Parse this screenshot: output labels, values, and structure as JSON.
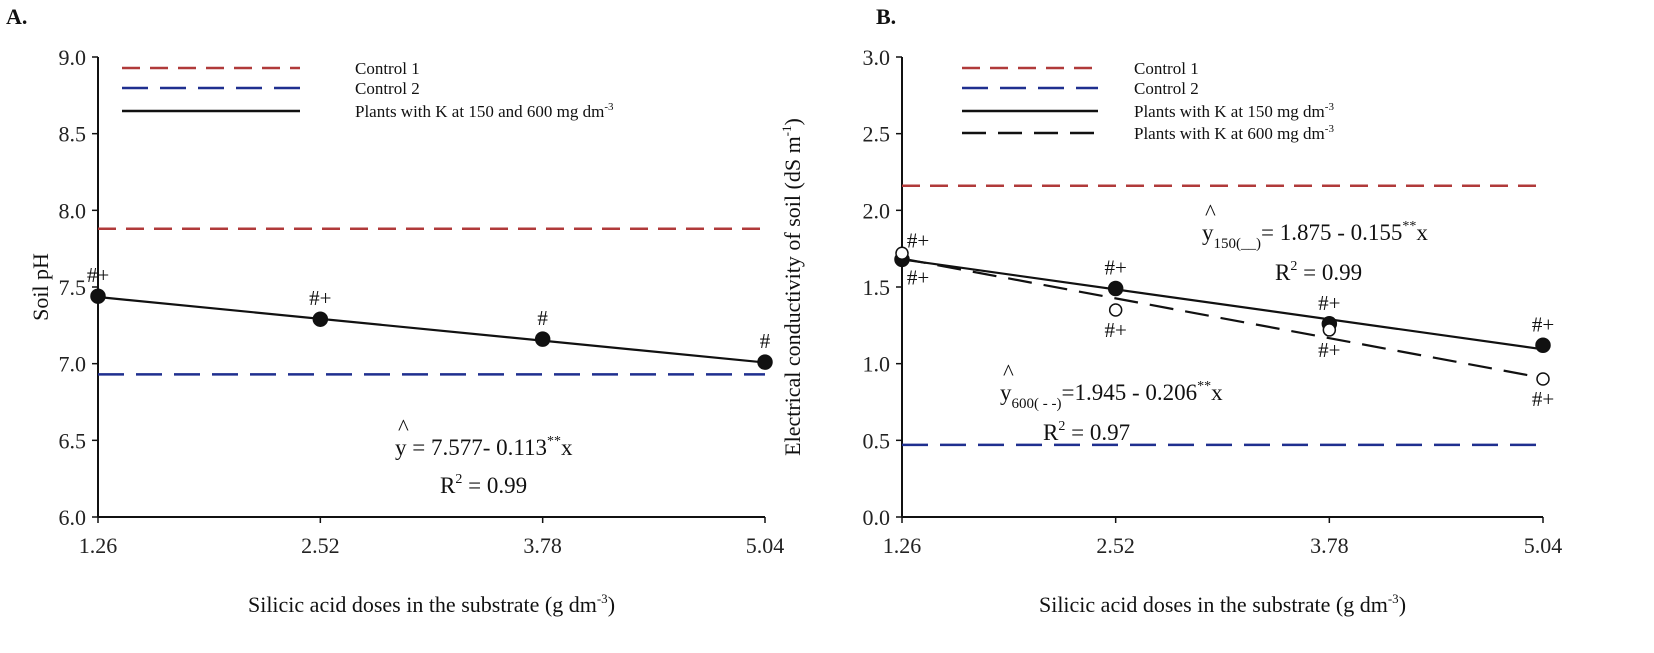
{
  "chart_data": [
    {
      "panel_label": "A.",
      "type": "line",
      "xlabel": "Silicic acid doses in the substrate (g dm",
      "xlabel_sup": "-3",
      "xlabel_end": ")",
      "ylabel": "Soil pH",
      "x": [
        1.26,
        2.52,
        3.78,
        5.04
      ],
      "x_ticks": [
        "1.26",
        "2.52",
        "3.78",
        "5.04"
      ],
      "ylim": [
        6.0,
        9.0
      ],
      "y_ticks": [
        "6.0",
        "6.5",
        "7.0",
        "7.5",
        "8.0",
        "8.5",
        "9.0"
      ],
      "controls": [
        {
          "name": "Control 1",
          "value": 7.88,
          "color": "#b03a3a"
        },
        {
          "name": "Control 2",
          "value": 6.93,
          "color": "#1f2f8f"
        }
      ],
      "series": [
        {
          "name": "Plants with K at 150 and 600 mg dm",
          "name_sup": "-3",
          "values": [
            7.44,
            7.29,
            7.16,
            7.01
          ],
          "marks": [
            "#+",
            "#+",
            "#",
            "#"
          ],
          "fit": [
            7.577,
            -0.113
          ],
          "marker": "filled",
          "style": "solid"
        }
      ],
      "equations": [
        {
          "yhat": "y",
          "sub": "",
          "rhs": " = 7.577- 0.113",
          "sig": "**",
          "x": "x",
          "r2_label": "R",
          "r2_val": " = 0.99"
        }
      ]
    },
    {
      "panel_label": "B.",
      "type": "line",
      "xlabel": "Silicic acid doses in the substrate (g dm",
      "xlabel_sup": "-3",
      "xlabel_end": ")",
      "ylabel": "Electrical conductivity of soil (dS m",
      "ylabel_sup": "-1",
      "ylabel_end": ")",
      "x": [
        1.26,
        2.52,
        3.78,
        5.04
      ],
      "x_ticks": [
        "1.26",
        "2.52",
        "3.78",
        "5.04"
      ],
      "ylim": [
        0.0,
        3.0
      ],
      "y_ticks": [
        "0.0",
        "0.5",
        "1.0",
        "1.5",
        "2.0",
        "2.5",
        "3.0"
      ],
      "controls": [
        {
          "name": "Control 1",
          "value": 2.16,
          "color": "#b03a3a"
        },
        {
          "name": "Control 2",
          "value": 0.47,
          "color": "#1f2f8f"
        }
      ],
      "series": [
        {
          "name": "Plants with K at 150 mg dm",
          "name_sup": "-3",
          "values": [
            1.68,
            1.49,
            1.26,
            1.12
          ],
          "marks": [
            "#+",
            "#+",
            "#+",
            "#+"
          ],
          "fit": [
            1.875,
            -0.155
          ],
          "marker": "filled",
          "style": "solid"
        },
        {
          "name": "Plants with K at 600 mg dm",
          "name_sup": "-3",
          "values": [
            1.72,
            1.35,
            1.22,
            0.9
          ],
          "marks": [
            "#+",
            "#+",
            "#+",
            "#+"
          ],
          "fit": [
            1.945,
            -0.206
          ],
          "marker": "open",
          "style": "dashed"
        }
      ],
      "equations": [
        {
          "yhat": "y",
          "sub": "150(__)",
          "rhs": "= 1.875 - 0.155",
          "sig": "**",
          "x": "x",
          "r2_label": "R",
          "r2_val": " = 0.99"
        },
        {
          "yhat": "y",
          "sub": "600( - -)",
          "rhs": "=1.945 - 0.206",
          "sig": "**",
          "x": "x",
          "r2_label": "R",
          "r2_val": " = 0.97"
        }
      ]
    }
  ]
}
